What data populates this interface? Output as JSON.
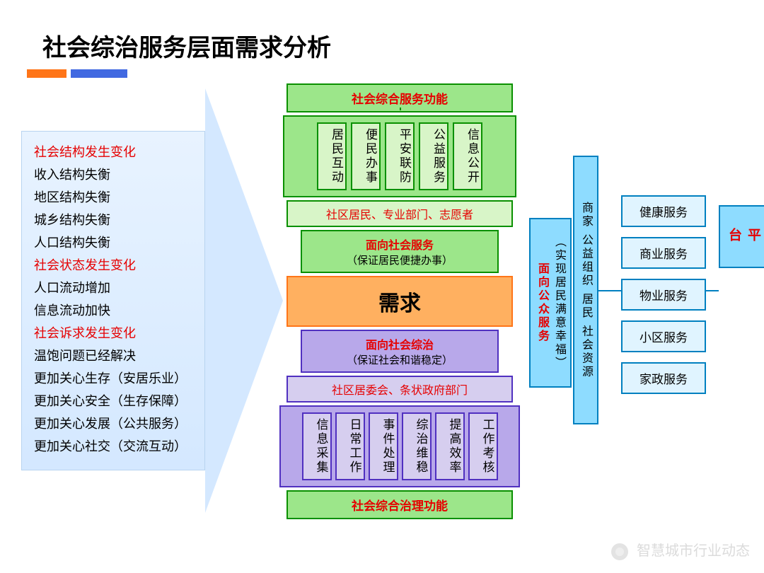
{
  "title": "社会综治服务层面需求分析",
  "accent": {
    "orange": "#ff7518",
    "blue": "#4169e1"
  },
  "left_list": [
    {
      "text": "社会结构发生变化",
      "red": true
    },
    {
      "text": "收入结构失衡",
      "red": false
    },
    {
      "text": "地区结构失衡",
      "red": false
    },
    {
      "text": "城乡结构失衡",
      "red": false
    },
    {
      "text": "人口结构失衡",
      "red": false
    },
    {
      "text": "社会状态发生变化",
      "red": true
    },
    {
      "text": "人口流动增加",
      "red": false
    },
    {
      "text": "信息流动加快",
      "red": false
    },
    {
      "text": "社会诉求发生变化",
      "red": true
    },
    {
      "text": "温饱问题已经解决",
      "red": false
    },
    {
      "text": "更加关心生存（安居乐业）",
      "red": false
    },
    {
      "text": "更加关心安全（生存保障）",
      "red": false
    },
    {
      "text": "更加关心发展（公共服务）",
      "red": false
    },
    {
      "text": "更加关心社交（交流互动）",
      "red": false
    }
  ],
  "center": {
    "top_title": "社会综合服务功能",
    "five_green": [
      "居民互动",
      "便民办事",
      "平安联防",
      "公益服务",
      "信息公开"
    ],
    "actors_green": "社区居民、专业部门、志愿者",
    "mid_green_t1": "面向社会服务",
    "mid_green_t2": "（保证居民便捷办事）",
    "core": "需求",
    "mid_purple_t1": "面向社会综治",
    "mid_purple_t2": "（保证社会和谐稳定）",
    "actors_purple": "社区居委会、条状政府部门",
    "six_purple": [
      "信息采集",
      "日常工作",
      "事件处理",
      "综治维稳",
      "提高效率",
      "工作考核"
    ],
    "bottom_title": "社会综合治理功能"
  },
  "right": {
    "v1_t1": "面向公众服务",
    "v1_t2": "（实现居民满意幸福）",
    "v2": "商家  公益组织  居民  社会资源",
    "services": [
      "健康服务",
      "商业服务",
      "物业服务",
      "小区服务",
      "家政服务"
    ],
    "platform": "公众服务平台"
  },
  "colors": {
    "green_border": "#0a9000",
    "green_fill": "#9ce68a",
    "green_light": "#d8f5c8",
    "purple_border": "#5030c0",
    "purple_fill": "#b8a8ea",
    "purple_light": "#d6ceef",
    "orange_border": "#ff7518",
    "orange_fill": "#ffb060",
    "cyan_border": "#0080c0",
    "cyan_fill": "#8edcff",
    "cyan_light": "#e0f4ff",
    "red": "#e60000"
  },
  "watermark": "智慧城市行业动态"
}
